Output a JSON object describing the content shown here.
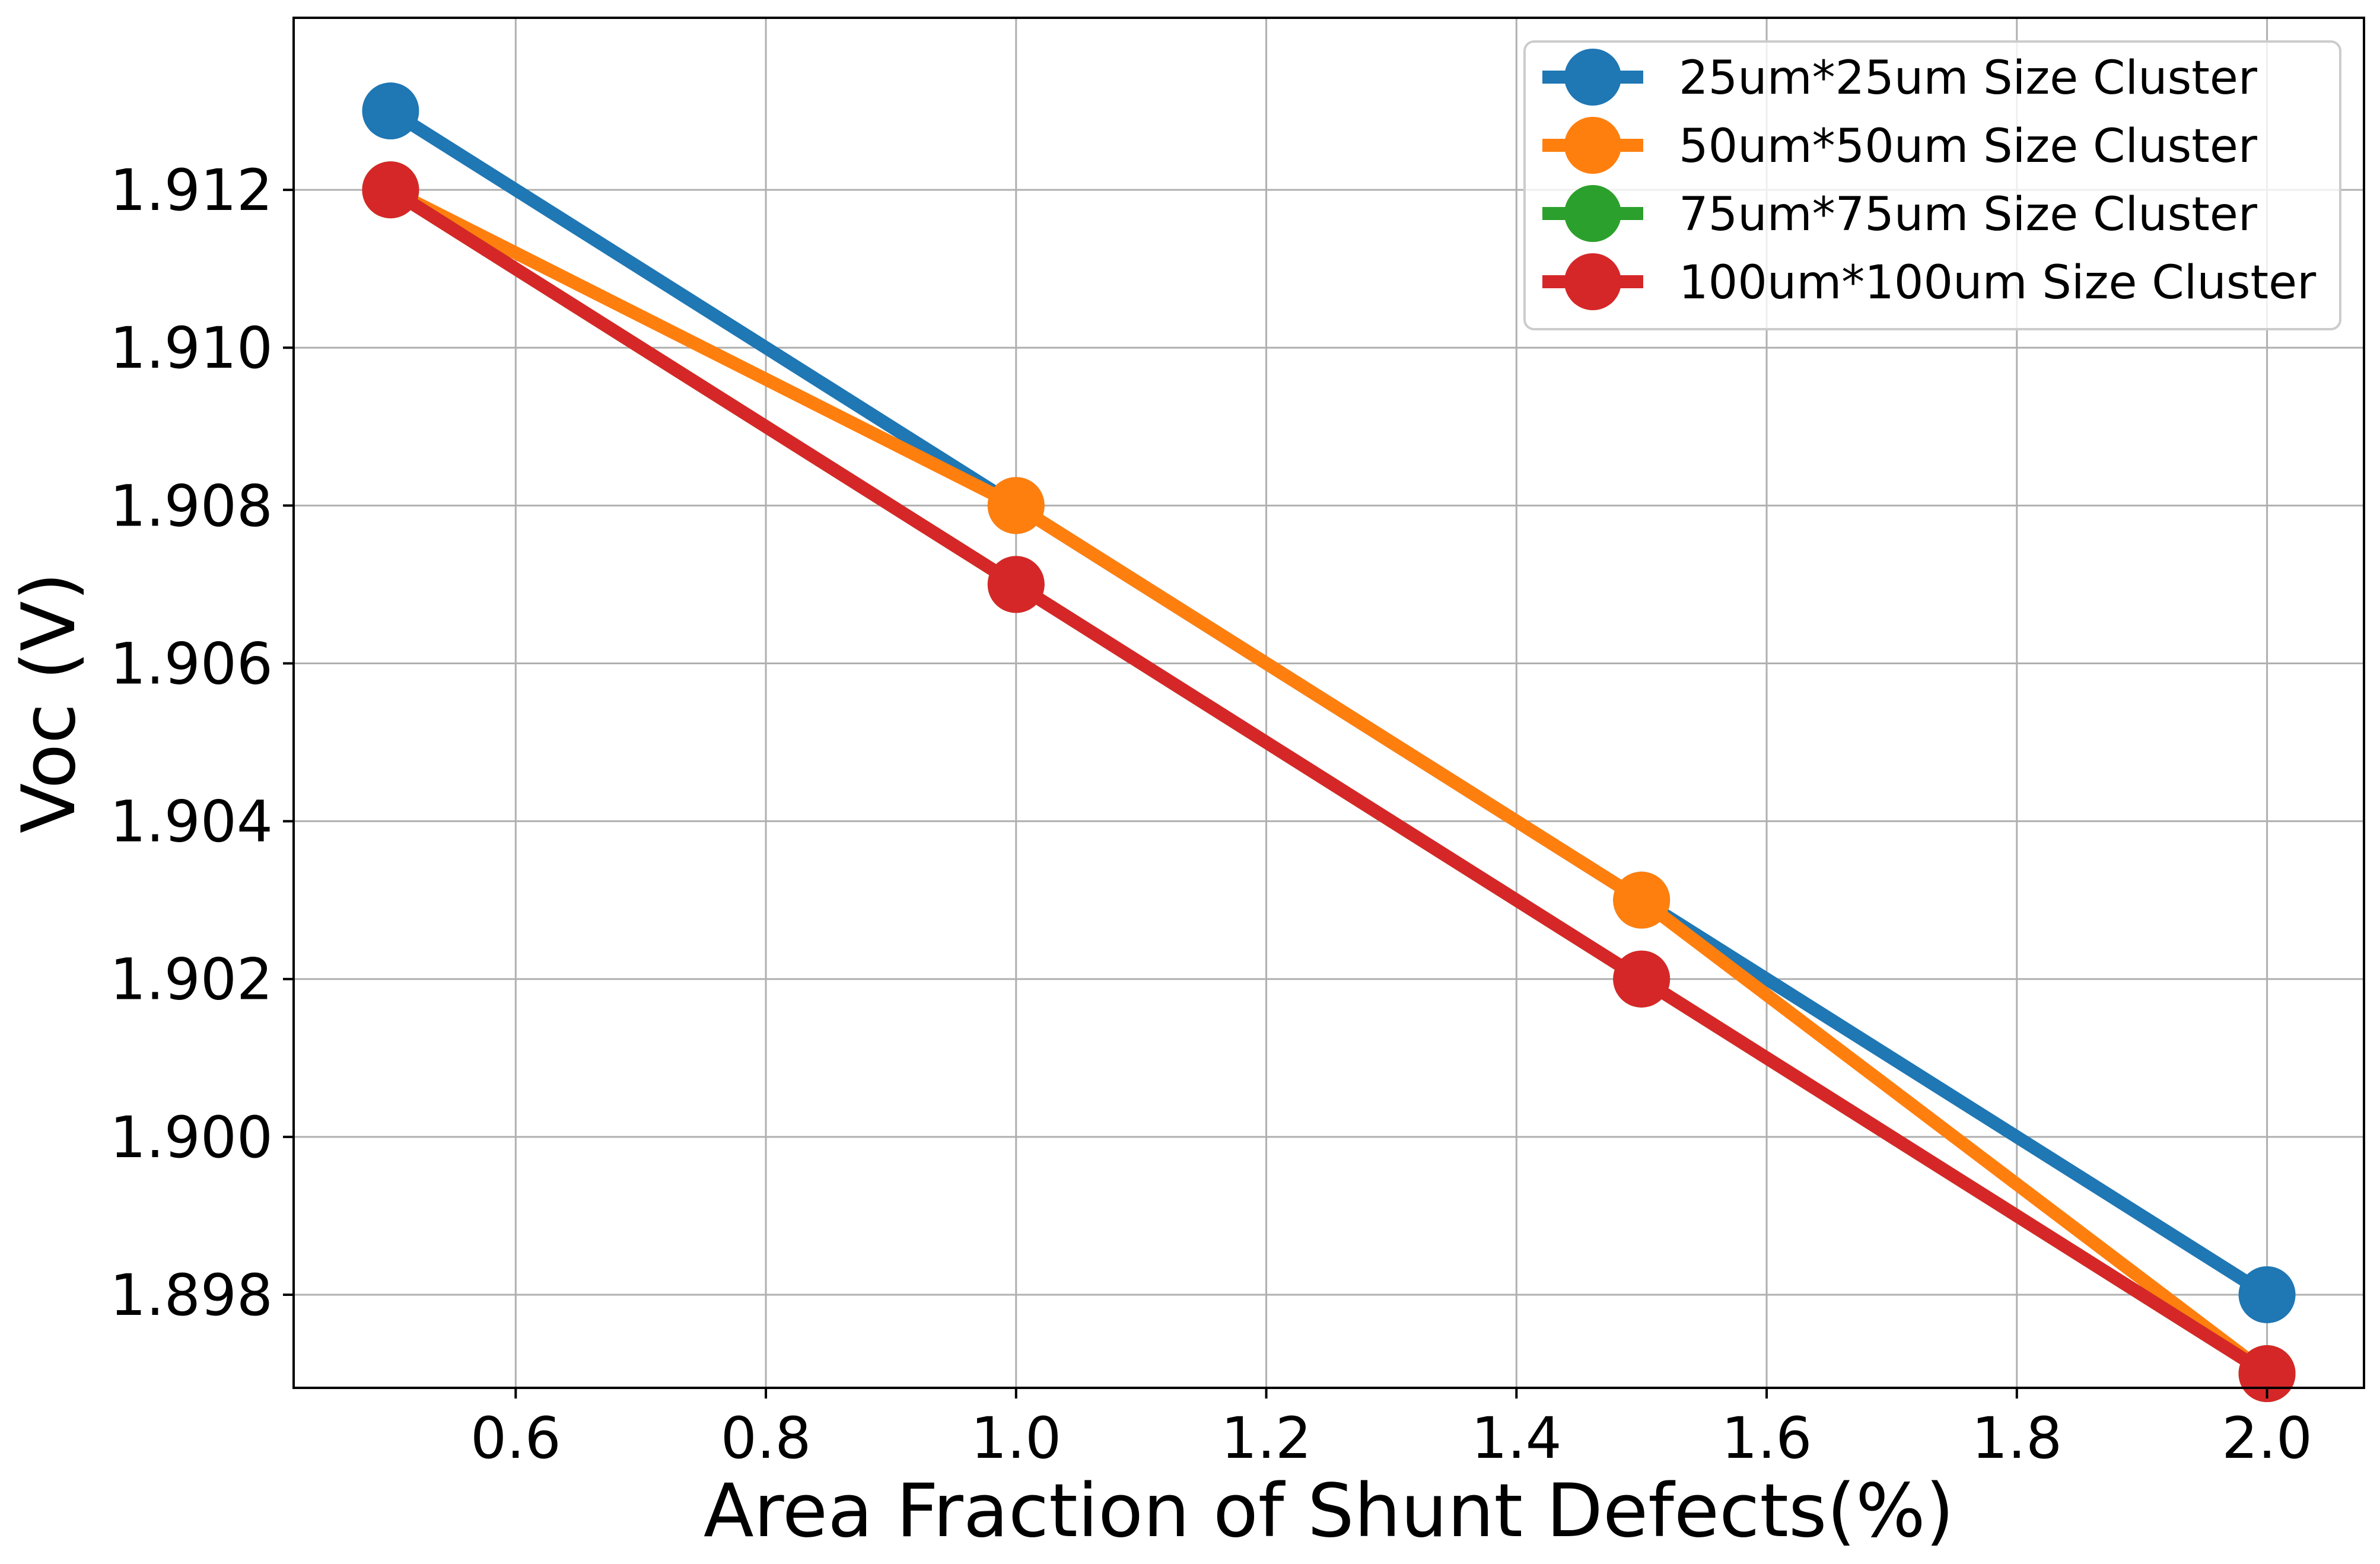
{
  "chart_data": {
    "type": "line",
    "title": "",
    "xlabel": "Area Fraction of Shunt Defects(%)",
    "ylabel": "Voc (V)",
    "xlim": [
      0.4225,
      2.0775
    ],
    "ylim": [
      1.89682,
      1.91418
    ],
    "x_ticks": [
      "0.6",
      "0.8",
      "1.0",
      "1.2",
      "1.4",
      "1.6",
      "1.8",
      "2.0"
    ],
    "y_ticks": [
      "1.898",
      "1.900",
      "1.902",
      "1.904",
      "1.906",
      "1.908",
      "1.910",
      "1.912"
    ],
    "grid": true,
    "legend_position": "top-right",
    "x": [
      0.5,
      1.0,
      1.5,
      2.0
    ],
    "series": [
      {
        "name": "25um*25um Size Cluster",
        "color": "#1f77b4",
        "values": [
          1.913,
          1.908,
          1.903,
          1.898
        ]
      },
      {
        "name": "50um*50um Size Cluster",
        "color": "#ff7f0e",
        "values": [
          1.912,
          1.908,
          1.903,
          1.897
        ]
      },
      {
        "name": "75um*75um Size Cluster",
        "color": "#2ca02c",
        "values": [
          1.912,
          1.907,
          1.902,
          1.897
        ]
      },
      {
        "name": "100um*100um Size Cluster",
        "color": "#d62728",
        "values": [
          1.912,
          1.907,
          1.902,
          1.897
        ]
      }
    ]
  }
}
